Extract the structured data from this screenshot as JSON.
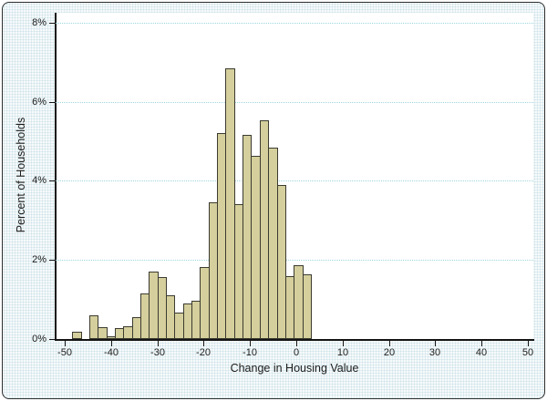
{
  "chart_data": {
    "type": "bar",
    "subtype": "histogram",
    "title": "",
    "xlabel": "Change in Housing Value",
    "ylabel": "Percent of Households",
    "legend_position": "none",
    "grid": "horizontal-dotted",
    "xlim": [
      -52,
      51.2
    ],
    "ylim": [
      0,
      8.25
    ],
    "x_ticks": [
      -50,
      -40,
      -30,
      -20,
      -10,
      0,
      10,
      20,
      30,
      40,
      50
    ],
    "x_tick_labels": [
      "-50",
      "-40",
      "-30",
      "-20",
      "-10",
      "0",
      "10",
      "20",
      "30",
      "40",
      "50"
    ],
    "y_ticks": [
      0,
      2,
      4,
      6,
      8
    ],
    "y_tick_labels": [
      "0%",
      "2%",
      "4%",
      "6%",
      "8%"
    ],
    "bins": {
      "first_left_edge": -48.4,
      "bin_width": 1.84,
      "percents": [
        0.19,
        0,
        0.6,
        0.3,
        0.06,
        0.28,
        0.33,
        0.56,
        1.16,
        1.7,
        1.56,
        1.1,
        0.66,
        0.9,
        0.97,
        1.83,
        3.46,
        5.2,
        6.84,
        3.42,
        5.16,
        4.64,
        5.53,
        4.84,
        3.9,
        1.6,
        1.86,
        1.64
      ]
    },
    "colors": {
      "bar_fill": "#d5cf9d",
      "bar_border": "#3b3b30",
      "grid_line": "#9ed6de",
      "axis": "#141414",
      "plot_background": "#ffffff",
      "outer_background": "#eaf2f4",
      "text": "#1c1c1c"
    }
  }
}
